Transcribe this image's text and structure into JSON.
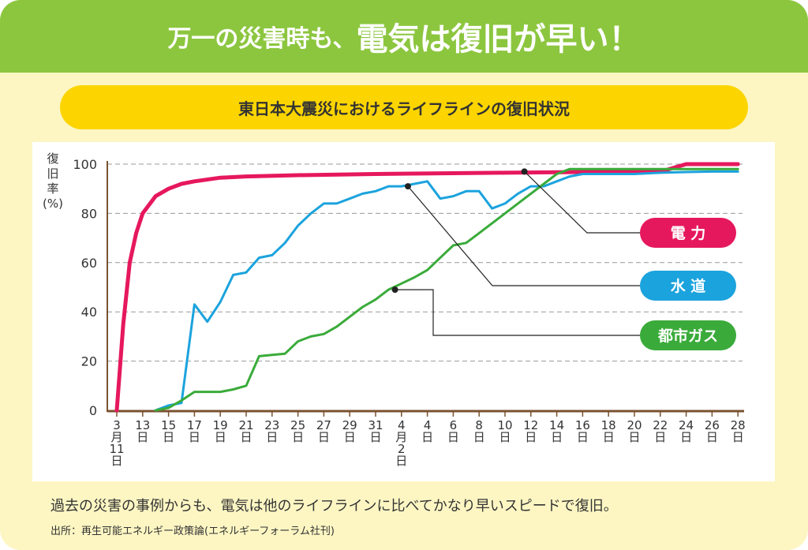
{
  "header": {
    "title_part1": "万一の災害時も、",
    "title_part2": "電気は復旧が早い！"
  },
  "colors": {
    "header_bg": "#8cc63f",
    "card_bg": "#fdf6c3",
    "pill_bg": "#fcd500",
    "electricity": "#e6185d",
    "water": "#1ba3dd",
    "gas": "#3aab3a",
    "axis": "#7a5230"
  },
  "chart_data": {
    "type": "line",
    "title": "東日本大震災におけるライフラインの復旧状況",
    "ylabel": "復旧率(%)",
    "ylim": [
      0,
      100
    ],
    "yticks": [
      0,
      20,
      40,
      60,
      80,
      100
    ],
    "grid": "dashed horizontal",
    "x_tick_labels": [
      "3月11日",
      "13日",
      "15日",
      "17日",
      "19日",
      "21日",
      "23日",
      "25日",
      "27日",
      "29日",
      "31日",
      "4月2日",
      "4日",
      "6日",
      "8日",
      "10日",
      "12日",
      "14日",
      "16日",
      "18日",
      "20日",
      "22日",
      "24日",
      "26日",
      "28日"
    ],
    "x_unit": "days since 3月11日",
    "series": [
      {
        "name": "電力",
        "color": "#e6185d",
        "x": [
          0,
          0.5,
          1,
          1.5,
          2,
          3,
          4,
          5,
          6,
          8,
          10,
          14,
          20,
          26,
          30,
          36,
          42,
          44,
          48
        ],
        "y": [
          0,
          35,
          60,
          72,
          80,
          87,
          90,
          92,
          93,
          94.5,
          95,
          95.5,
          96,
          96.3,
          96.5,
          96.8,
          96.9,
          100,
          100
        ]
      },
      {
        "name": "水道",
        "color": "#1ba3dd",
        "x": [
          3,
          4,
          5,
          6,
          7,
          8,
          9,
          10,
          11,
          12,
          13,
          14,
          15,
          16,
          17,
          18,
          19,
          20,
          21,
          22,
          23,
          24,
          25,
          26,
          27,
          28,
          29,
          30,
          31,
          32,
          33,
          34,
          35,
          36,
          37,
          38,
          39,
          40,
          42,
          44,
          46,
          48
        ],
        "y": [
          0,
          2,
          3,
          43,
          36,
          44,
          55,
          56,
          62,
          63,
          68,
          75,
          80,
          84,
          84,
          86,
          88,
          89,
          91,
          91,
          92,
          93,
          86,
          87,
          89,
          89,
          82,
          84,
          88,
          91,
          91,
          93,
          95,
          96,
          96,
          96,
          96,
          96,
          96.5,
          96.8,
          97,
          97
        ]
      },
      {
        "name": "都市ガス",
        "color": "#3aab3a",
        "x": [
          3,
          4,
          5,
          6,
          7,
          8,
          9,
          10,
          11,
          12,
          13,
          14,
          15,
          16,
          17,
          18,
          19,
          20,
          21,
          22,
          23,
          24,
          25,
          26,
          27,
          28,
          29,
          30,
          31,
          32,
          33,
          34,
          35,
          36,
          37,
          40,
          44,
          48
        ],
        "y": [
          0,
          1,
          4,
          7.5,
          7.5,
          7.5,
          8.5,
          10,
          22,
          22.5,
          23,
          28,
          30,
          31,
          34,
          38,
          42,
          45,
          49,
          51.5,
          54,
          57,
          62,
          67,
          68,
          72,
          76,
          80,
          84,
          88,
          92,
          96,
          98,
          98,
          98,
          98,
          98,
          98
        ]
      }
    ],
    "markers": [
      {
        "series": "水道",
        "x": 22.5,
        "y": 91
      },
      {
        "series": "都市ガス",
        "x": 21.5,
        "y": 49
      },
      {
        "series": "電力",
        "x": 31.5,
        "y": 97
      }
    ],
    "legend": [
      {
        "label": "電 力",
        "color": "#e6185d"
      },
      {
        "label": "水 道",
        "color": "#1ba3dd"
      },
      {
        "label": "都市ガス",
        "color": "#3aab3a"
      }
    ]
  },
  "footer": {
    "main": "過去の災害の事例からも、電気は他のライフラインに比べてかなり早いスピードで復旧。",
    "source": "出所：再生可能エネルギー政策論(エネルギーフォーラム社刊)"
  }
}
